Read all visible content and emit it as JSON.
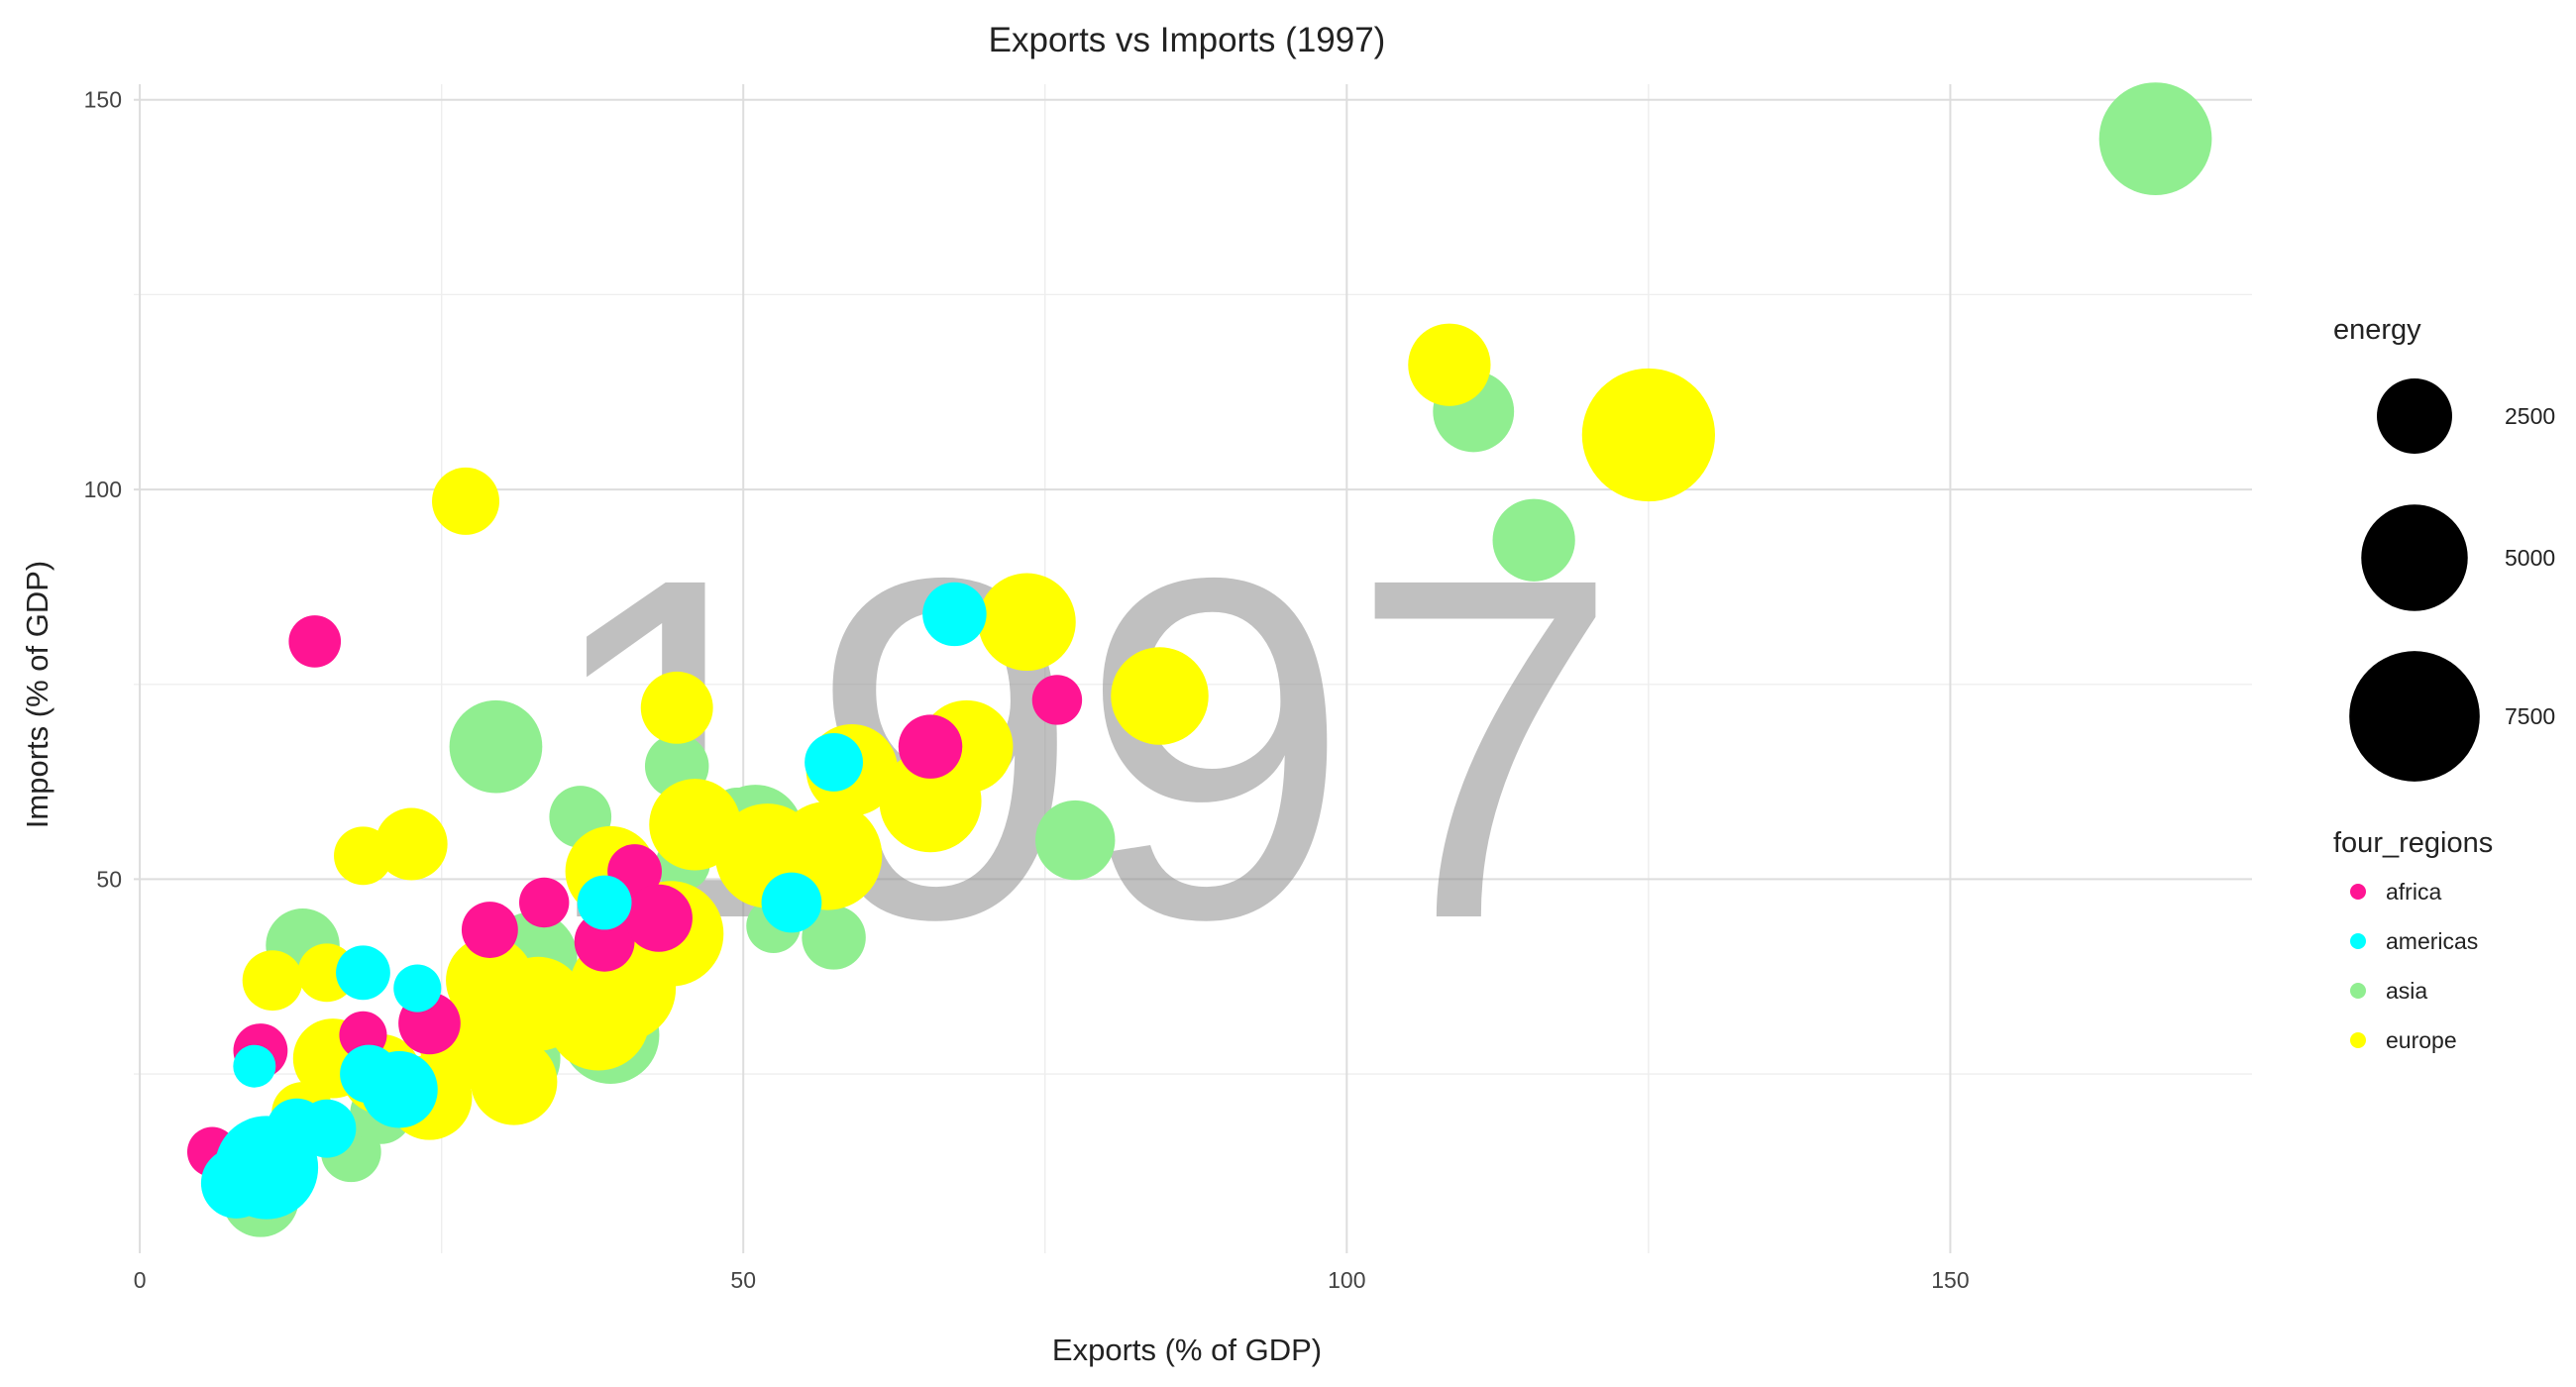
{
  "chart_data": {
    "type": "scatter",
    "title": "Exports vs Imports (1997)",
    "xlabel": "Exports (% of GDP)",
    "ylabel": "Imports (% of GDP)",
    "xlim": [
      -0.5,
      175
    ],
    "ylim": [
      2,
      152
    ],
    "x_ticks": [
      0,
      50,
      100,
      150
    ],
    "y_ticks": [
      50,
      100,
      150
    ],
    "grid": true,
    "background_label": "1997",
    "size_legend": {
      "title": "energy",
      "entries": [
        {
          "label": "2500",
          "value": 2500
        },
        {
          "label": "5000",
          "value": 5000
        },
        {
          "label": "7500",
          "value": 7500
        }
      ]
    },
    "color_legend": {
      "title": "four_regions",
      "placement": "right",
      "entries": [
        {
          "label": "africa",
          "color": "#ff1493"
        },
        {
          "label": "americas",
          "color": "#00ffff"
        },
        {
          "label": "asia",
          "color": "#90ee90"
        },
        {
          "label": "europe",
          "color": "#ffff00"
        }
      ]
    },
    "series": [
      {
        "name": "asia",
        "color": "#90ee90",
        "points": [
          {
            "x": 167,
            "y": 145,
            "size": 5600
          },
          {
            "x": 110.5,
            "y": 110,
            "size": 2900
          },
          {
            "x": 115.5,
            "y": 93.5,
            "size": 3000
          },
          {
            "x": 29.5,
            "y": 67,
            "size": 3800
          },
          {
            "x": 77.5,
            "y": 55,
            "size": 2800
          },
          {
            "x": 36.5,
            "y": 58,
            "size": 1700
          },
          {
            "x": 44.5,
            "y": 64.5,
            "size": 1800
          },
          {
            "x": 49.5,
            "y": 58,
            "size": 1500
          },
          {
            "x": 13.5,
            "y": 41.5,
            "size": 2400
          },
          {
            "x": 57.5,
            "y": 42.5,
            "size": 1800
          },
          {
            "x": 52.5,
            "y": 44,
            "size": 1300
          },
          {
            "x": 45,
            "y": 52,
            "size": 1300
          },
          {
            "x": 32.5,
            "y": 40,
            "size": 3600
          },
          {
            "x": 31,
            "y": 27,
            "size": 3800
          },
          {
            "x": 39,
            "y": 30,
            "size": 4200
          },
          {
            "x": 51,
            "y": 56,
            "size": 4000
          },
          {
            "x": 29.5,
            "y": 30,
            "size": 2200
          },
          {
            "x": 17.5,
            "y": 15,
            "size": 1600
          },
          {
            "x": 10,
            "y": 9,
            "size": 2600
          },
          {
            "x": 21.5,
            "y": 23.5,
            "size": 1700
          },
          {
            "x": 20,
            "y": 20,
            "size": 1700
          }
        ]
      },
      {
        "name": "europe",
        "color": "#ffff00",
        "points": [
          {
            "x": 125,
            "y": 107,
            "size": 7800
          },
          {
            "x": 108.5,
            "y": 116,
            "size": 3000
          },
          {
            "x": 27,
            "y": 98.5,
            "size": 2000
          },
          {
            "x": 73.5,
            "y": 83,
            "size": 4200
          },
          {
            "x": 84.5,
            "y": 73.5,
            "size": 4200
          },
          {
            "x": 44.5,
            "y": 72,
            "size": 2300
          },
          {
            "x": 68.5,
            "y": 67,
            "size": 3800
          },
          {
            "x": 22.5,
            "y": 54.5,
            "size": 2300
          },
          {
            "x": 18.5,
            "y": 53,
            "size": 1500
          },
          {
            "x": 65.5,
            "y": 60,
            "size": 4600
          },
          {
            "x": 59,
            "y": 64,
            "size": 3700
          },
          {
            "x": 57,
            "y": 53,
            "size": 5200
          },
          {
            "x": 52,
            "y": 53,
            "size": 4800
          },
          {
            "x": 46,
            "y": 57,
            "size": 3700
          },
          {
            "x": 44,
            "y": 43,
            "size": 4900
          },
          {
            "x": 39,
            "y": 51,
            "size": 3600
          },
          {
            "x": 40,
            "y": 36,
            "size": 5000
          },
          {
            "x": 38,
            "y": 32,
            "size": 4600
          },
          {
            "x": 33,
            "y": 34,
            "size": 3900
          },
          {
            "x": 29,
            "y": 37,
            "size": 3400
          },
          {
            "x": 27,
            "y": 29,
            "size": 3800
          },
          {
            "x": 31,
            "y": 24,
            "size": 3300
          },
          {
            "x": 24,
            "y": 22,
            "size": 3200
          },
          {
            "x": 20,
            "y": 25,
            "size": 2800
          },
          {
            "x": 16,
            "y": 27,
            "size": 2800
          },
          {
            "x": 11,
            "y": 37,
            "size": 1600
          },
          {
            "x": 13.5,
            "y": 20,
            "size": 1700
          },
          {
            "x": 15.5,
            "y": 38,
            "size": 1500
          }
        ]
      },
      {
        "name": "africa",
        "color": "#ff1493",
        "points": [
          {
            "x": 14.5,
            "y": 80.5,
            "size": 1200
          },
          {
            "x": 76,
            "y": 73,
            "size": 1100
          },
          {
            "x": 65.5,
            "y": 67,
            "size": 1800
          },
          {
            "x": 33.5,
            "y": 47,
            "size": 1100
          },
          {
            "x": 29,
            "y": 43.5,
            "size": 1400
          },
          {
            "x": 38.5,
            "y": 42,
            "size": 1600
          },
          {
            "x": 41,
            "y": 51,
            "size": 1300
          },
          {
            "x": 43,
            "y": 45,
            "size": 2000
          },
          {
            "x": 24,
            "y": 31.5,
            "size": 1700
          },
          {
            "x": 18.5,
            "y": 30,
            "size": 1000
          },
          {
            "x": 10,
            "y": 28,
            "size": 1300
          },
          {
            "x": 6,
            "y": 15,
            "size": 1100
          }
        ]
      },
      {
        "name": "americas",
        "color": "#00ffff",
        "points": [
          {
            "x": 67.5,
            "y": 84,
            "size": 1800
          },
          {
            "x": 57.5,
            "y": 65,
            "size": 1500
          },
          {
            "x": 54,
            "y": 47,
            "size": 1600
          },
          {
            "x": 38.5,
            "y": 47,
            "size": 1300
          },
          {
            "x": 18.5,
            "y": 38,
            "size": 1300
          },
          {
            "x": 23,
            "y": 36,
            "size": 1000
          },
          {
            "x": 19,
            "y": 25,
            "size": 1500
          },
          {
            "x": 21.5,
            "y": 23,
            "size": 2600
          },
          {
            "x": 15.5,
            "y": 18,
            "size": 1500
          },
          {
            "x": 13,
            "y": 18,
            "size": 1600
          },
          {
            "x": 9.5,
            "y": 26,
            "size": 800
          },
          {
            "x": 8,
            "y": 11,
            "size": 2200
          },
          {
            "x": 10.5,
            "y": 13,
            "size": 4700
          }
        ]
      }
    ]
  }
}
